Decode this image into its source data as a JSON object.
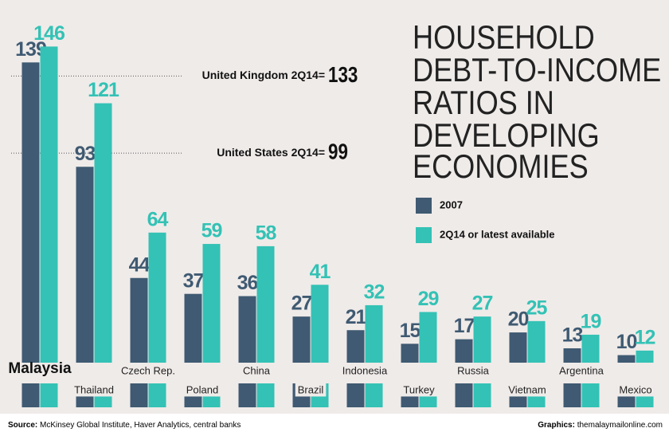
{
  "chart_data": {
    "type": "bar",
    "title_lines": [
      "HOUSEHOLD",
      "DEBT-TO-INCOME",
      "RATIOS IN",
      "DEVELOPING",
      "ECONOMIES"
    ],
    "categories": [
      "Malaysia",
      "Thailand",
      "Czech Rep.",
      "Poland",
      "China",
      "Brazil",
      "Indonesia",
      "Turkey",
      "Russia",
      "Vietnam",
      "Argentina",
      "Mexico"
    ],
    "series": [
      {
        "name": "2007",
        "color": "#3f5a72",
        "values": [
          139,
          93,
          44,
          37,
          36,
          27,
          21,
          15,
          17,
          20,
          13,
          10
        ]
      },
      {
        "name": "2Q14 or latest available",
        "color": "#33c2b5",
        "values": [
          146,
          121,
          64,
          59,
          58,
          41,
          32,
          29,
          27,
          25,
          19,
          12
        ]
      }
    ],
    "highlight": 0,
    "reference_lines": [
      {
        "label": "United Kingdom 2Q14=",
        "value": 133
      },
      {
        "label": "United States 2Q14=",
        "value": 99
      }
    ],
    "ylim": [
      0,
      150
    ],
    "source": {
      "label": "Source:",
      "text": "McKinsey Global Institute, Haver Analytics, central banks"
    },
    "credit": {
      "label": "Graphics:",
      "text": "themalaymailonline.com"
    }
  }
}
